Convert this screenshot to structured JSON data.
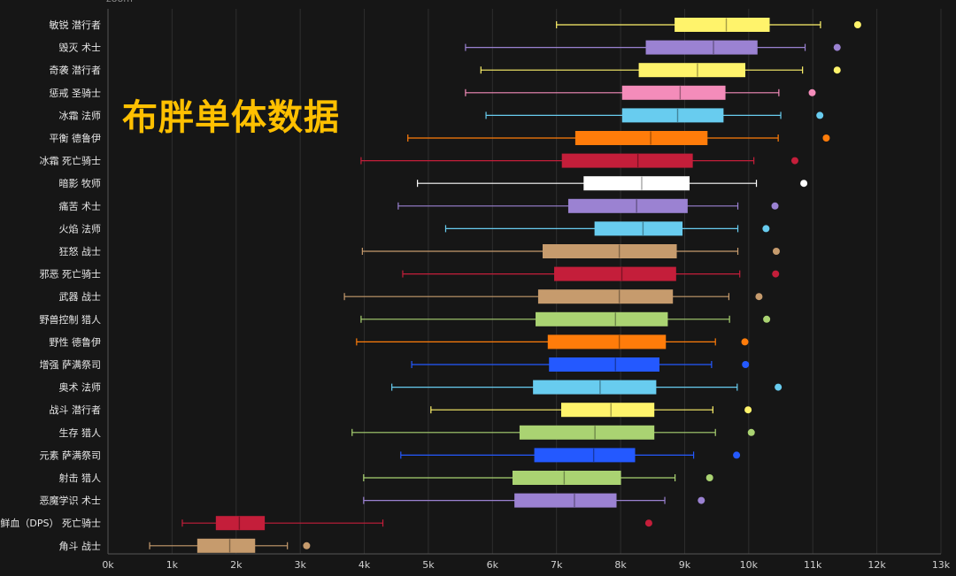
{
  "header": {
    "title": "布胖单体数据",
    "zoom_label": "zoom"
  },
  "chart_data": {
    "type": "boxplot",
    "title": "布胖单体数据",
    "xlabel": "",
    "xlim": [
      0,
      13000
    ],
    "x_ticks": [
      "0k",
      "1k",
      "2k",
      "3k",
      "4k",
      "5k",
      "6k",
      "7k",
      "8k",
      "9k",
      "10k",
      "11k",
      "12k",
      "13k"
    ],
    "grid": true,
    "series": [
      {
        "name": "敏锐 潜行者",
        "color": "#fff36b",
        "min": 7000,
        "q1": 8850,
        "median": 9650,
        "q3": 10320,
        "max": 11120,
        "outlier": 11700
      },
      {
        "name": "毁灭 术士",
        "color": "#9b82d2",
        "min": 5580,
        "q1": 8400,
        "median": 9450,
        "q3": 10130,
        "max": 10880,
        "outlier": 11380
      },
      {
        "name": "奇袭 潜行者",
        "color": "#fff36b",
        "min": 5820,
        "q1": 8290,
        "median": 9200,
        "q3": 9940,
        "max": 10840,
        "outlier": 11380
      },
      {
        "name": "惩戒 圣骑士",
        "color": "#f48cba",
        "min": 5580,
        "q1": 8030,
        "median": 8930,
        "q3": 9630,
        "max": 10470,
        "outlier": 10990
      },
      {
        "name": "冰霜 法师",
        "color": "#68ccef",
        "min": 5900,
        "q1": 8030,
        "median": 8890,
        "q3": 9600,
        "max": 10500,
        "outlier": 11110
      },
      {
        "name": "平衡 德鲁伊",
        "color": "#ff7c0a",
        "min": 4680,
        "q1": 7300,
        "median": 8470,
        "q3": 9350,
        "max": 10460,
        "outlier": 11210
      },
      {
        "name": "冰霜 死亡骑士",
        "color": "#c41e3a",
        "min": 3950,
        "q1": 7090,
        "median": 8270,
        "q3": 9120,
        "max": 10080,
        "outlier": 10720
      },
      {
        "name": "暗影 牧师",
        "color": "#ffffff",
        "min": 4830,
        "q1": 7430,
        "median": 8330,
        "q3": 9070,
        "max": 10120,
        "outlier": 10860
      },
      {
        "name": "痛苦 术士",
        "color": "#9b82d2",
        "min": 4530,
        "q1": 7190,
        "median": 8250,
        "q3": 9040,
        "max": 9830,
        "outlier": 10410
      },
      {
        "name": "火焰 法师",
        "color": "#68ccef",
        "min": 5270,
        "q1": 7600,
        "median": 8350,
        "q3": 8960,
        "max": 9830,
        "outlier": 10270
      },
      {
        "name": "狂怒 战士",
        "color": "#c69b6d",
        "min": 3970,
        "q1": 6790,
        "median": 7980,
        "q3": 8870,
        "max": 9830,
        "outlier": 10430
      },
      {
        "name": "邪恶 死亡骑士",
        "color": "#c41e3a",
        "min": 4600,
        "q1": 6970,
        "median": 8020,
        "q3": 8860,
        "max": 9860,
        "outlier": 10420
      },
      {
        "name": "武器 战士",
        "color": "#c69b6d",
        "min": 3690,
        "q1": 6720,
        "median": 7980,
        "q3": 8810,
        "max": 9690,
        "outlier": 10160
      },
      {
        "name": "野兽控制 猎人",
        "color": "#aad372",
        "min": 3950,
        "q1": 6680,
        "median": 7920,
        "q3": 8730,
        "max": 9700,
        "outlier": 10280
      },
      {
        "name": "野性 德鲁伊",
        "color": "#ff7c0a",
        "min": 3880,
        "q1": 6870,
        "median": 7980,
        "q3": 8700,
        "max": 9480,
        "outlier": 9940
      },
      {
        "name": "增强 萨满祭司",
        "color": "#2459ff",
        "min": 4740,
        "q1": 6890,
        "median": 7920,
        "q3": 8600,
        "max": 9420,
        "outlier": 9950
      },
      {
        "name": "奥术 法师",
        "color": "#68ccef",
        "min": 4430,
        "q1": 6640,
        "median": 7680,
        "q3": 8550,
        "max": 9820,
        "outlier": 10460
      },
      {
        "name": "战斗 潜行者",
        "color": "#fff36b",
        "min": 5040,
        "q1": 7080,
        "median": 7850,
        "q3": 8520,
        "max": 9440,
        "outlier": 9990
      },
      {
        "name": "生存 猎人",
        "color": "#aad372",
        "min": 3810,
        "q1": 6430,
        "median": 7600,
        "q3": 8520,
        "max": 9480,
        "outlier": 10040
      },
      {
        "name": "元素 萨满祭司",
        "color": "#2459ff",
        "min": 4570,
        "q1": 6660,
        "median": 7580,
        "q3": 8220,
        "max": 9140,
        "outlier": 9810
      },
      {
        "name": "射击 猎人",
        "color": "#aad372",
        "min": 3990,
        "q1": 6320,
        "median": 7120,
        "q3": 8000,
        "max": 8850,
        "outlier": 9390
      },
      {
        "name": "恶魔学识 术士",
        "color": "#9b82d2",
        "min": 3990,
        "q1": 6350,
        "median": 7280,
        "q3": 7930,
        "max": 8690,
        "outlier": 9260
      },
      {
        "name": "鲜血（DPS） 死亡骑士",
        "color": "#c41e3a",
        "min": 1160,
        "q1": 1690,
        "median": 2050,
        "q3": 2440,
        "max": 4290,
        "outlier": 8440
      },
      {
        "name": "角斗 战士",
        "color": "#c69b6d",
        "min": 650,
        "q1": 1400,
        "median": 1900,
        "q3": 2290,
        "max": 2800,
        "outlier": 3100
      }
    ]
  }
}
